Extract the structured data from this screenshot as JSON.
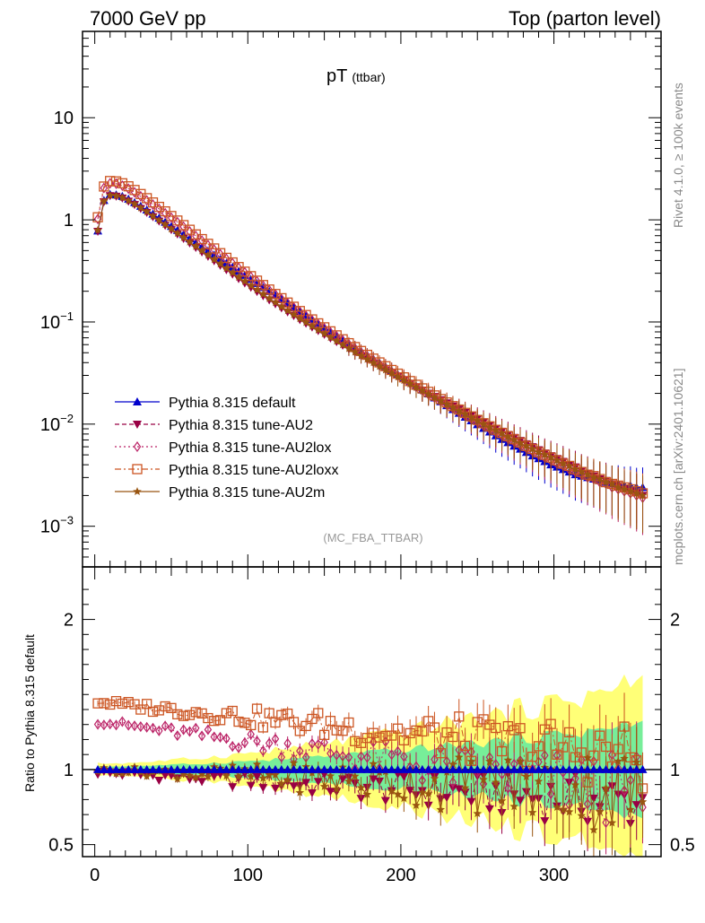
{
  "header": {
    "left": "7000 GeV pp",
    "right": "Top (parton level)"
  },
  "side_labels": {
    "rivet": "Rivet 4.1.0, ≥ 100k events",
    "mcplots": "mcplots.cern.ch [arXiv:2401.10621]"
  },
  "colors": {
    "default": "#0000cc",
    "au2": "#990044",
    "au2lox": "#bb2266",
    "au2loxx": "#cc5522",
    "au2m": "#995511",
    "band_yellow": "#ffff77",
    "band_green": "#77ee99"
  },
  "chart_data": [
    {
      "type": "scatter",
      "panel": "main",
      "title": "pT",
      "title_sub": "(ttbar)",
      "watermark": "(MC_FBA_TTBAR)",
      "yscale": "log",
      "xlim": [
        -8,
        370
      ],
      "ylim": [
        0.0004,
        70
      ],
      "y_tick_labels": [
        {
          "v": 10,
          "base": "10",
          "exp": ""
        },
        {
          "v": 1,
          "base": "1",
          "exp": ""
        },
        {
          "v": 0.1,
          "base": "10",
          "exp": "−1"
        },
        {
          "v": 0.01,
          "base": "10",
          "exp": "−2"
        },
        {
          "v": 0.001,
          "base": "10",
          "exp": "−3"
        }
      ],
      "legend": [
        {
          "key": "default",
          "label": "Pythia 8.315 default",
          "marker": "triangle-up",
          "dash": ""
        },
        {
          "key": "au2",
          "label": "Pythia 8.315 tune-AU2",
          "marker": "triangle-down",
          "dash": "5,3"
        },
        {
          "key": "au2lox",
          "label": "Pythia 8.315 tune-AU2lox",
          "marker": "diamond-open",
          "dash": "2,3"
        },
        {
          "key": "au2loxx",
          "label": "Pythia 8.315 tune-AU2loxx",
          "marker": "square-open",
          "dash": "7,3,2,3"
        },
        {
          "key": "au2m",
          "label": "Pythia 8.315 tune-AU2m",
          "marker": "star",
          "dash": ""
        }
      ],
      "x": [
        2,
        6,
        10,
        14,
        18,
        22,
        26,
        30,
        34,
        38,
        42,
        46,
        50,
        54,
        58,
        62,
        66,
        70,
        74,
        78,
        82,
        86,
        90,
        94,
        98,
        102,
        106,
        110,
        114,
        118,
        122,
        126,
        130,
        134,
        138,
        142,
        146,
        150,
        154,
        158,
        162,
        166,
        170,
        174,
        178,
        182,
        186,
        190,
        194,
        198,
        202,
        206,
        210,
        214,
        218,
        222,
        226,
        230,
        234,
        238,
        242,
        246,
        250,
        254,
        258,
        262,
        266,
        270,
        274,
        278,
        282,
        286,
        290,
        294,
        298,
        302,
        306,
        310,
        314,
        318,
        322,
        326,
        330,
        334,
        338,
        342,
        346,
        350,
        354,
        358
      ],
      "series": [
        {
          "key": "default",
          "name": "Pythia 8.315 default",
          "values": [
            0.78,
            1.55,
            1.78,
            1.76,
            1.7,
            1.6,
            1.48,
            1.36,
            1.25,
            1.14,
            1.04,
            0.95,
            0.865,
            0.79,
            0.72,
            0.655,
            0.598,
            0.545,
            0.497,
            0.453,
            0.413,
            0.377,
            0.344,
            0.314,
            0.287,
            0.262,
            0.239,
            0.218,
            0.199,
            0.182,
            0.166,
            0.152,
            0.139,
            0.127,
            0.116,
            0.106,
            0.097,
            0.0888,
            0.0812,
            0.0743,
            0.068,
            0.0622,
            0.0569,
            0.0521,
            0.0477,
            0.0437,
            0.04,
            0.0366,
            0.0335,
            0.0307,
            0.0281,
            0.0257,
            0.0236,
            0.0216,
            0.0198,
            0.0181,
            0.0166,
            0.0152,
            0.0139,
            0.0128,
            0.0117,
            0.0108,
            0.0099,
            0.0091,
            0.0084,
            0.0077,
            0.0071,
            0.0066,
            0.0061,
            0.0057,
            0.0053,
            0.0049,
            0.0046,
            0.0043,
            0.004,
            0.0038,
            0.0036,
            0.0034,
            0.0032,
            0.0031,
            0.003,
            0.0029,
            0.0028,
            0.0027,
            0.0026,
            0.0026,
            0.0025,
            0.0025,
            0.0024,
            0.0024
          ]
        },
        {
          "key": "au2",
          "name": "Pythia 8.315 tune-AU2",
          "values": [
            0.77,
            1.5,
            1.72,
            1.7,
            1.63,
            1.52,
            1.41,
            1.29,
            1.18,
            1.07,
            0.97,
            0.88,
            0.8,
            0.725,
            0.655,
            0.592,
            0.535,
            0.484,
            0.438,
            0.396,
            0.358,
            0.324,
            0.293,
            0.265,
            0.24,
            0.218,
            0.198,
            0.18,
            0.164,
            0.15,
            0.137,
            0.125,
            0.115,
            0.105,
            0.097,
            0.089,
            0.082,
            0.0755,
            0.0695,
            0.064,
            0.059,
            0.0544,
            0.0502,
            0.0463,
            0.0428,
            0.0396,
            0.0366,
            0.0339,
            0.0314,
            0.0291,
            0.027,
            0.025,
            0.0232,
            0.0215,
            0.02,
            0.0186,
            0.0173,
            0.0161,
            0.015,
            0.014,
            0.013,
            0.0121,
            0.0113,
            0.0105,
            0.0098,
            0.0091,
            0.0085,
            0.0079,
            0.0074,
            0.0069,
            0.0064,
            0.006,
            0.0056,
            0.0052,
            0.0049,
            0.0046,
            0.0043,
            0.004,
            0.0038,
            0.0035,
            0.0033,
            0.0031,
            0.0029,
            0.0028,
            0.0026,
            0.0025,
            0.0023,
            0.0022,
            0.0021,
            0.002
          ]
        },
        {
          "key": "au2lox",
          "name": "Pythia 8.315 tune-AU2lox",
          "values": [
            1.02,
            2.05,
            2.28,
            2.26,
            2.16,
            2.02,
            1.86,
            1.7,
            1.55,
            1.41,
            1.28,
            1.16,
            1.05,
            0.95,
            0.855,
            0.77,
            0.695,
            0.627,
            0.566,
            0.511,
            0.461,
            0.416,
            0.376,
            0.339,
            0.306,
            0.277,
            0.25,
            0.226,
            0.205,
            0.186,
            0.168,
            0.153,
            0.139,
            0.126,
            0.115,
            0.104,
            0.095,
            0.0866,
            0.079,
            0.0721,
            0.0658,
            0.0601,
            0.0549,
            0.0502,
            0.0459,
            0.042,
            0.0385,
            0.0353,
            0.0324,
            0.0297,
            0.0273,
            0.0251,
            0.0231,
            0.0213,
            0.0196,
            0.0181,
            0.0167,
            0.0154,
            0.0142,
            0.0131,
            0.0121,
            0.0112,
            0.0104,
            0.0096,
            0.0089,
            0.0083,
            0.0077,
            0.0072,
            0.0067,
            0.0062,
            0.0058,
            0.0054,
            0.005,
            0.0047,
            0.0044,
            0.0041,
            0.0039,
            0.0036,
            0.0034,
            0.0032,
            0.003,
            0.0029,
            0.0027,
            0.0026,
            0.0024,
            0.0023,
            0.0022,
            0.0021,
            0.002,
            0.0019
          ]
        },
        {
          "key": "au2loxx",
          "name": "Pythia 8.315 tune-AU2loxx",
          "values": [
            1.06,
            2.12,
            2.4,
            2.38,
            2.28,
            2.13,
            1.96,
            1.79,
            1.63,
            1.48,
            1.34,
            1.21,
            1.09,
            0.985,
            0.888,
            0.8,
            0.72,
            0.648,
            0.583,
            0.525,
            0.472,
            0.425,
            0.383,
            0.345,
            0.311,
            0.281,
            0.254,
            0.23,
            0.208,
            0.188,
            0.171,
            0.155,
            0.141,
            0.128,
            0.117,
            0.106,
            0.097,
            0.0887,
            0.081,
            0.074,
            0.0677,
            0.062,
            0.0568,
            0.052,
            0.0477,
            0.0438,
            0.0402,
            0.0369,
            0.0339,
            0.0312,
            0.0287,
            0.0264,
            0.0243,
            0.0224,
            0.0207,
            0.0191,
            0.0176,
            0.0163,
            0.015,
            0.0139,
            0.0129,
            0.0119,
            0.011,
            0.0102,
            0.0095,
            0.0088,
            0.0082,
            0.0076,
            0.0071,
            0.0066,
            0.0061,
            0.0057,
            0.0053,
            0.005,
            0.0047,
            0.0044,
            0.0041,
            0.0039,
            0.0036,
            0.0034,
            0.0032,
            0.0031,
            0.0029,
            0.0027,
            0.0026,
            0.0025,
            0.0024,
            0.0023,
            0.0022,
            0.0021
          ]
        },
        {
          "key": "au2m",
          "name": "Pythia 8.315 tune-AU2m",
          "values": [
            0.79,
            1.52,
            1.74,
            1.72,
            1.65,
            1.54,
            1.43,
            1.31,
            1.2,
            1.09,
            0.99,
            0.9,
            0.815,
            0.74,
            0.67,
            0.607,
            0.55,
            0.498,
            0.451,
            0.409,
            0.37,
            0.335,
            0.304,
            0.275,
            0.25,
            0.227,
            0.206,
            0.187,
            0.17,
            0.155,
            0.141,
            0.129,
            0.118,
            0.108,
            0.099,
            0.091,
            0.0836,
            0.0768,
            0.0706,
            0.065,
            0.0598,
            0.0551,
            0.0508,
            0.0468,
            0.0432,
            0.0399,
            0.0368,
            0.034,
            0.0314,
            0.029,
            0.0268,
            0.0248,
            0.0229,
            0.0212,
            0.0196,
            0.0182,
            0.0168,
            0.0156,
            0.0145,
            0.0134,
            0.0125,
            0.0116,
            0.0108,
            0.01,
            0.0093,
            0.0087,
            0.0081,
            0.0075,
            0.007,
            0.0065,
            0.0061,
            0.0057,
            0.0053,
            0.005,
            0.0047,
            0.0044,
            0.0041,
            0.0039,
            0.0036,
            0.0034,
            0.0032,
            0.003,
            0.0029,
            0.0027,
            0.0026,
            0.0024,
            0.0023,
            0.0022,
            0.0021,
            0.002
          ]
        }
      ]
    },
    {
      "type": "line",
      "panel": "ratio",
      "ylabel": "Ratio to Pythia 8.315 default",
      "reference": 1,
      "xlim": [
        -8,
        370
      ],
      "ylim": [
        0.42,
        2.35
      ],
      "x_ticks": [
        0,
        100,
        200,
        300
      ],
      "y_ticks": [
        0.5,
        1,
        2
      ],
      "band_green_halfwidth": [
        0.02,
        0.3
      ],
      "band_yellow_halfwidth": [
        0.04,
        0.58
      ],
      "series": [
        {
          "key": "au2",
          "trend": [
            0.98,
            0.78
          ],
          "scatter": 0.18
        },
        {
          "key": "au2lox",
          "trend": [
            1.32,
            0.84
          ],
          "scatter": 0.24
        },
        {
          "key": "au2loxx",
          "trend": [
            1.45,
            1.08
          ],
          "scatter": 0.22
        },
        {
          "key": "au2m",
          "trend": [
            1.0,
            0.86
          ],
          "scatter": 0.3
        }
      ]
    }
  ]
}
